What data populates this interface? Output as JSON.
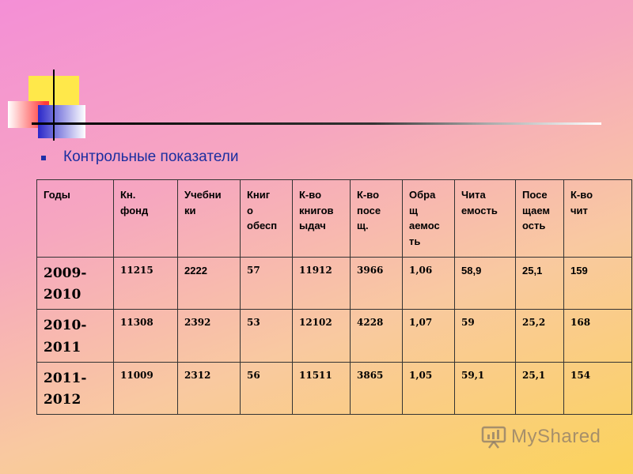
{
  "heading": "Контрольные показатели",
  "table": {
    "headers": [
      [
        "Годы"
      ],
      [
        "Кн.",
        "фонд"
      ],
      [
        "Учебни",
        "ки"
      ],
      [
        "Книг",
        "о",
        "обесп"
      ],
      [
        "К-во",
        "книгов",
        "ыдач"
      ],
      [
        "К-во",
        "посе",
        "щ."
      ],
      [
        "Обра",
        "щ",
        "аемос",
        "ть"
      ],
      [
        "Чита",
        "емость"
      ],
      [
        "Посе",
        "щаем",
        "ость"
      ],
      [
        "К-во",
        "чит"
      ]
    ],
    "rows": [
      {
        "year": [
          "2009-",
          "2010"
        ],
        "values": [
          "11215",
          "2222",
          "57",
          "11912",
          "3966",
          "1,06",
          "58,9",
          "25,1",
          "159"
        ]
      },
      {
        "year": [
          "2010-",
          "2011"
        ],
        "values": [
          "11308",
          "2392",
          "53",
          "12102",
          "4228",
          "1,07",
          "59",
          "25,2",
          "168"
        ]
      },
      {
        "year": [
          "2011-",
          "2012"
        ],
        "values": [
          "11009",
          "2312",
          "56",
          "11511",
          "3865",
          "1,05",
          "59,1",
          "25,1",
          "154"
        ]
      }
    ]
  },
  "watermark": "MyShared",
  "watermark_icon": "presentation-chart-icon"
}
